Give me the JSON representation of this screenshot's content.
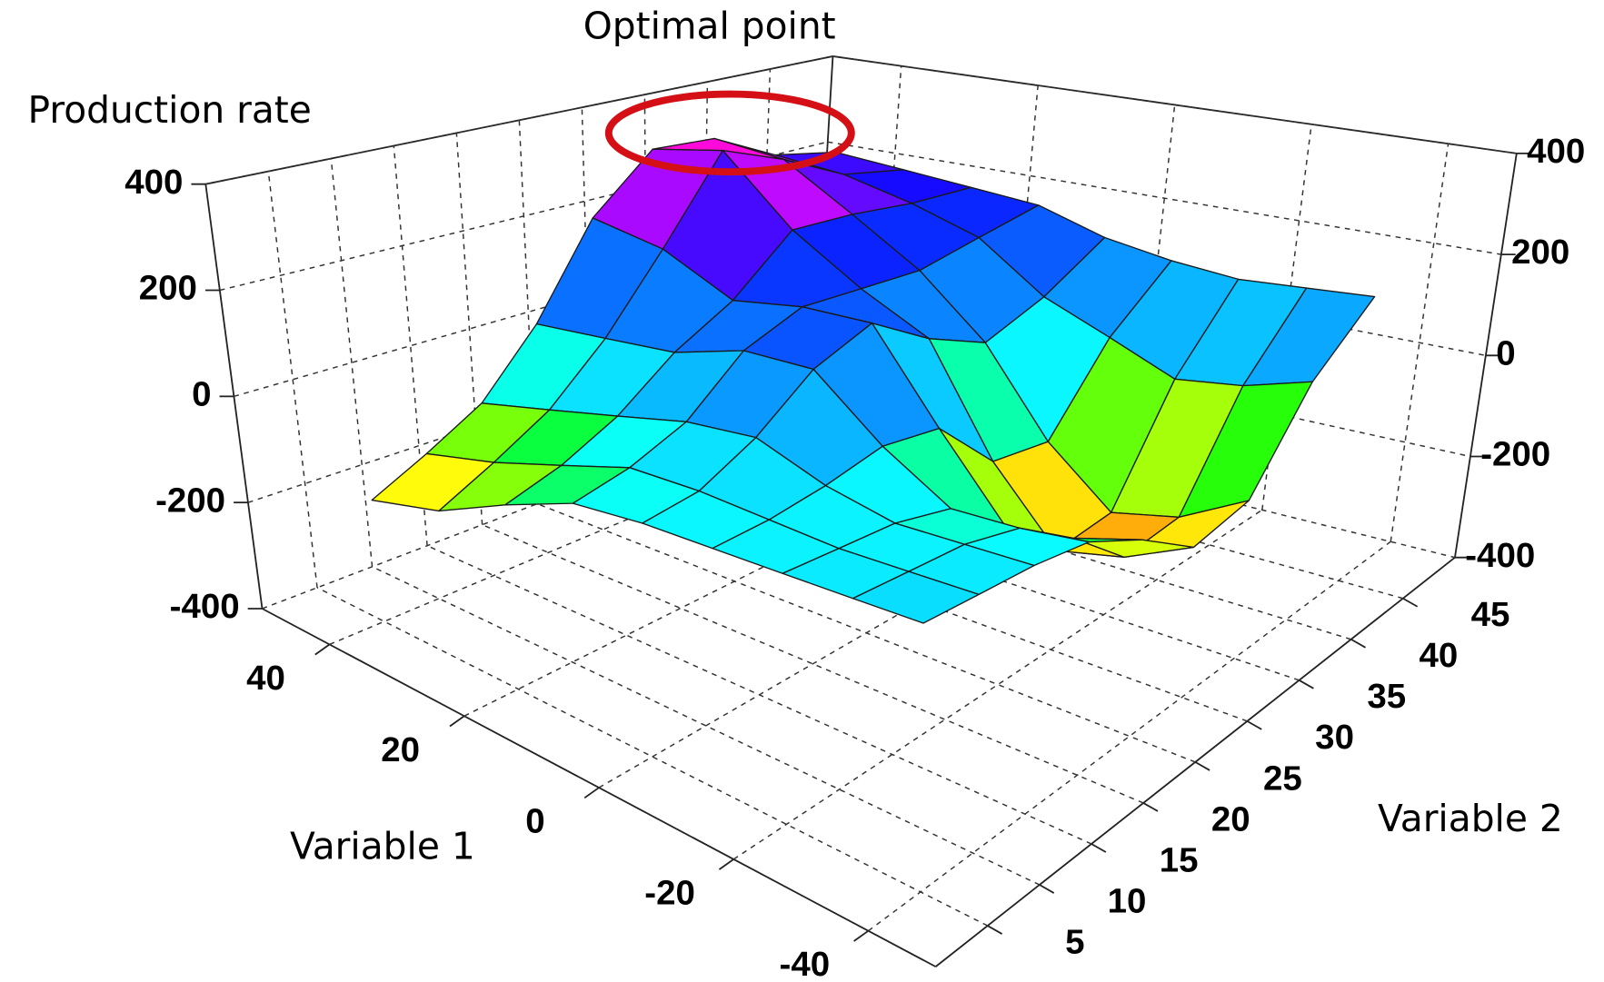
{
  "chart_data": {
    "type": "surface",
    "annotation": "Optimal point",
    "z_label": "Production rate",
    "x_label": "Variable 1",
    "y_label": "Variable 2",
    "x": [
      -40,
      -30,
      -20,
      -10,
      0,
      10,
      20,
      30,
      40
    ],
    "y": [
      5,
      10,
      15,
      20,
      25,
      30,
      35,
      40,
      45
    ],
    "z": [
      [
        60,
        50,
        40,
        20,
        -40,
        -120,
        -100,
        60,
        160
      ],
      [
        50,
        40,
        30,
        0,
        -80,
        -180,
        -170,
        20,
        150
      ],
      [
        40,
        30,
        20,
        -10,
        -100,
        -210,
        -200,
        0,
        140
      ],
      [
        30,
        30,
        40,
        60,
        40,
        -80,
        -100,
        50,
        150
      ],
      [
        20,
        30,
        80,
        160,
        200,
        120,
        60,
        100,
        170
      ],
      [
        0,
        20,
        60,
        150,
        190,
        180,
        170,
        190,
        210
      ],
      [
        -60,
        -30,
        20,
        100,
        160,
        260,
        250,
        230,
        220
      ],
      [
        -130,
        -80,
        -20,
        80,
        220,
        385,
        330,
        260,
        230
      ],
      [
        -170,
        -120,
        -60,
        60,
        240,
        350,
        340,
        270,
        240
      ]
    ],
    "xlim": [
      -50,
      50
    ],
    "ylim": [
      0,
      50
    ],
    "zlim": [
      -400,
      400
    ],
    "xticks": [
      -40,
      -20,
      0,
      20,
      40
    ],
    "yticks": [
      5,
      10,
      15,
      20,
      25,
      30,
      35,
      40,
      45
    ],
    "zticks": [
      -400,
      -200,
      0,
      200,
      400
    ],
    "grid": true
  }
}
